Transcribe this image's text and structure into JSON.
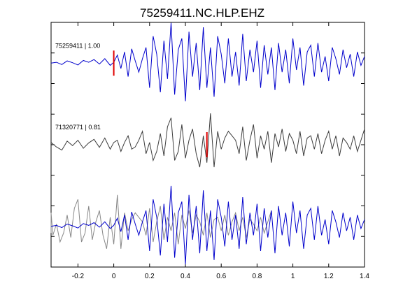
{
  "chart_data": {
    "type": "line",
    "title": "75259411.NC.HLP.EHZ",
    "xlabel": "",
    "ylabel": "",
    "xlim": [
      -0.35,
      1.4
    ],
    "xticks": [
      -0.2,
      0,
      0.2,
      0.4,
      0.6,
      0.8,
      1,
      1.2,
      1.4
    ],
    "xtick_labels": [
      "-0.2",
      "0",
      "0.2",
      "0.4",
      "0.6",
      "0.8",
      "1",
      "1.2",
      "1.4"
    ],
    "grid": false,
    "traces": [
      {
        "label": "75259411 | 1.00",
        "color": "#0000cc",
        "pick_time": 0.0,
        "x": [
          -0.35,
          -0.32,
          -0.29,
          -0.26,
          -0.23,
          -0.2,
          -0.17,
          -0.14,
          -0.11,
          -0.08,
          -0.05,
          -0.02,
          0.0,
          0.02,
          0.04,
          0.06,
          0.08,
          0.1,
          0.12,
          0.14,
          0.16,
          0.18,
          0.2,
          0.22,
          0.24,
          0.26,
          0.28,
          0.3,
          0.32,
          0.34,
          0.36,
          0.38,
          0.4,
          0.42,
          0.44,
          0.46,
          0.48,
          0.5,
          0.52,
          0.54,
          0.56,
          0.58,
          0.6,
          0.62,
          0.64,
          0.66,
          0.68,
          0.7,
          0.72,
          0.74,
          0.76,
          0.78,
          0.8,
          0.82,
          0.84,
          0.86,
          0.88,
          0.9,
          0.92,
          0.94,
          0.96,
          0.98,
          1.0,
          1.02,
          1.04,
          1.06,
          1.08,
          1.1,
          1.12,
          1.14,
          1.16,
          1.18,
          1.2,
          1.22,
          1.24,
          1.26,
          1.28,
          1.3,
          1.32,
          1.34,
          1.36,
          1.38,
          1.4
        ],
        "y": [
          0.0,
          0.02,
          -0.03,
          0.05,
          0.01,
          -0.04,
          0.06,
          0.02,
          0.08,
          -0.02,
          0.1,
          -0.05,
          0.02,
          0.18,
          -0.12,
          0.25,
          -0.3,
          0.32,
          0.05,
          -0.2,
          0.1,
          0.35,
          -0.55,
          0.6,
          0.2,
          -0.65,
          0.5,
          -0.35,
          0.9,
          -0.7,
          0.3,
          0.55,
          -0.85,
          0.7,
          -0.3,
          0.45,
          -0.6,
          0.8,
          -0.55,
          0.35,
          -0.75,
          0.6,
          0.2,
          -0.45,
          0.55,
          -0.3,
          0.25,
          -0.5,
          0.65,
          -0.4,
          0.3,
          -0.2,
          0.5,
          -0.55,
          0.4,
          -0.25,
          0.35,
          -0.6,
          0.45,
          -0.2,
          0.3,
          -0.45,
          0.55,
          -0.15,
          0.35,
          -0.5,
          0.25,
          0.4,
          -0.3,
          0.45,
          -0.2,
          0.15,
          -0.4,
          0.35,
          0.1,
          -0.25,
          0.3,
          -0.1,
          0.2,
          -0.3,
          0.25,
          -0.05,
          0.15
        ]
      },
      {
        "label": "71320771 | 0.81",
        "color": "#3c3c3c",
        "pick_time": 0.52,
        "x": [
          -0.35,
          -0.32,
          -0.29,
          -0.26,
          -0.23,
          -0.2,
          -0.17,
          -0.14,
          -0.11,
          -0.08,
          -0.05,
          -0.02,
          0.0,
          0.02,
          0.04,
          0.06,
          0.08,
          0.1,
          0.12,
          0.14,
          0.16,
          0.18,
          0.2,
          0.22,
          0.24,
          0.26,
          0.28,
          0.3,
          0.32,
          0.34,
          0.36,
          0.38,
          0.4,
          0.42,
          0.44,
          0.46,
          0.48,
          0.5,
          0.52,
          0.54,
          0.56,
          0.58,
          0.6,
          0.62,
          0.64,
          0.66,
          0.68,
          0.7,
          0.72,
          0.74,
          0.76,
          0.78,
          0.8,
          0.82,
          0.84,
          0.86,
          0.88,
          0.9,
          0.92,
          0.94,
          0.96,
          0.98,
          1.0,
          1.02,
          1.04,
          1.06,
          1.08,
          1.1,
          1.12,
          1.14,
          1.16,
          1.18,
          1.2,
          1.22,
          1.24,
          1.26,
          1.28,
          1.3,
          1.32,
          1.34,
          1.36,
          1.38,
          1.4
        ],
        "y": [
          0.05,
          -0.05,
          -0.12,
          0.08,
          -0.02,
          0.1,
          -0.08,
          0.04,
          0.12,
          -0.06,
          0.15,
          -0.1,
          0.05,
          0.1,
          -0.15,
          0.05,
          0.2,
          -0.1,
          -0.05,
          0.1,
          0.3,
          -0.2,
          0.05,
          -0.35,
          -0.15,
          0.25,
          -0.25,
          0.4,
          0.6,
          -0.35,
          -0.15,
          0.45,
          -0.3,
          0.1,
          0.35,
          -0.2,
          -0.5,
          0.2,
          -0.4,
          0.7,
          -0.5,
          0.3,
          -0.1,
          0.15,
          0.3,
          0.2,
          0.1,
          -0.2,
          0.4,
          -0.35,
          0.1,
          0.45,
          -0.3,
          0.2,
          -0.1,
          0.3,
          -0.4,
          0.25,
          -0.05,
          0.35,
          -0.15,
          0.25,
          0.1,
          -0.2,
          0.3,
          -0.25,
          0.15,
          0.2,
          -0.1,
          0.25,
          -0.2,
          0.1,
          0.3,
          -0.1,
          0.2,
          -0.25,
          0.15,
          0.05,
          -0.1,
          0.2,
          -0.15,
          0.1,
          0.35
        ]
      }
    ]
  }
}
